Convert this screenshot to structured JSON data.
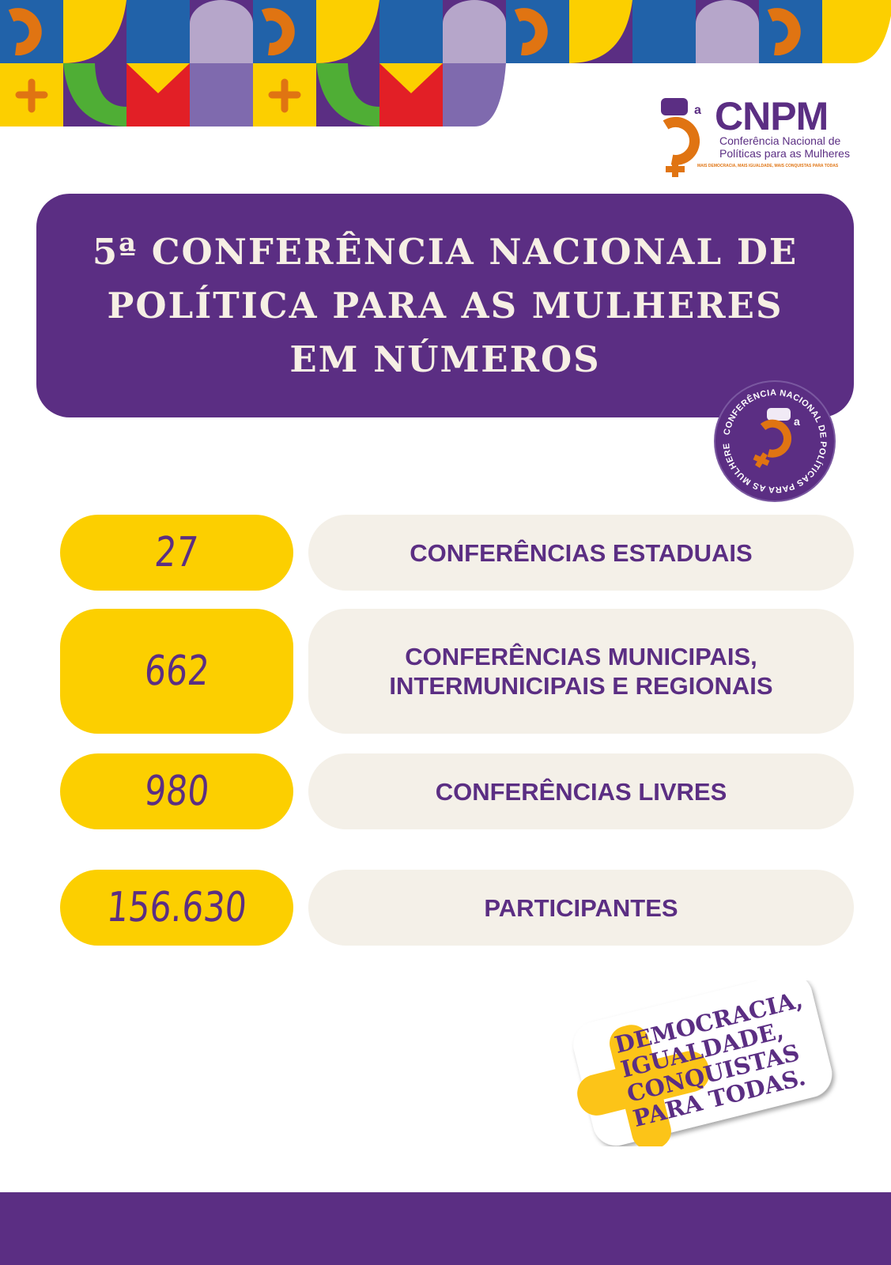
{
  "colors": {
    "purple": "#5b2e83",
    "yellow": "#fccf00",
    "beige": "#f4f0e8",
    "orange": "#e07412",
    "blue": "#2162a9",
    "lilac": "#b6a6ca",
    "green": "#4fae35",
    "red": "#e21f26"
  },
  "logo": {
    "acronym": "CNPM",
    "line1": "Conferência Nacional de",
    "line2": "Políticas para as Mulheres",
    "tagline": "MAIS DEMOCRACIA, MAIS IGUALDADE, MAIS CONQUISTAS PARA TODAS",
    "ordinal": "a"
  },
  "title": "5ª CONFERÊNCIA NACIONAL DE POLÍTICA PARA AS MULHERES EM NÚMEROS",
  "seal": {
    "text": "CONFERÊNCIA NACIONAL DE POLÍTICAS PARA AS MULHERES •",
    "ordinal": "a"
  },
  "stats": [
    {
      "value": "27",
      "label": "CONFERÊNCIAS ESTADUAIS"
    },
    {
      "value": "662",
      "label": "CONFERÊNCIAS MUNICIPAIS, INTERMUNICIPAIS E REGIONAIS"
    },
    {
      "value": "980",
      "label": "CONFERÊNCIAS LIVRES"
    },
    {
      "value": "156.630",
      "label": "PARTICIPANTES"
    }
  ],
  "slogan": [
    "DEMOCRACIA,",
    "IGUALDADE,",
    "CONQUISTAS",
    "PARA TODAS."
  ]
}
